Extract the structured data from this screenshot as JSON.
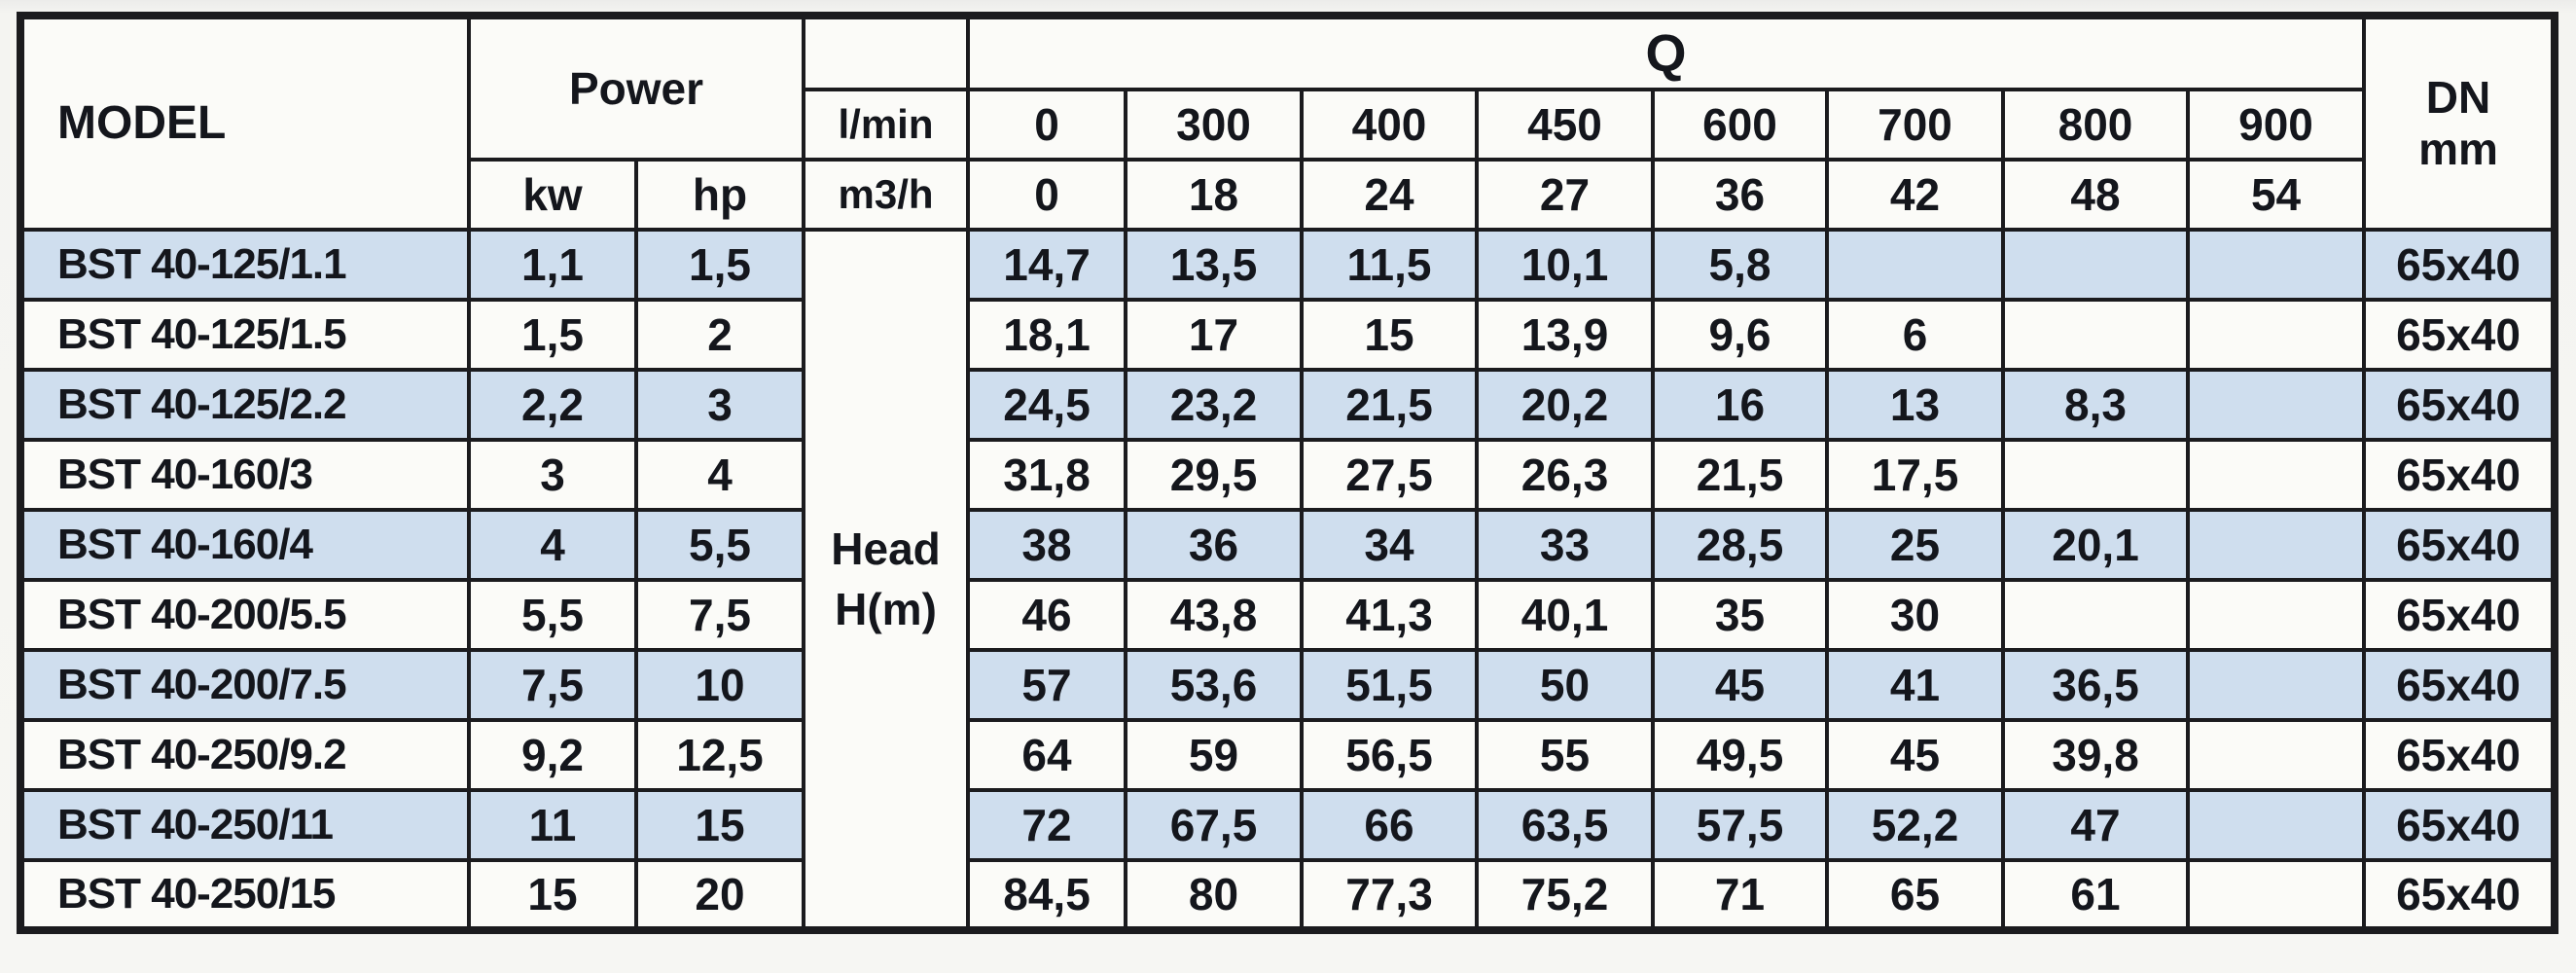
{
  "table": {
    "header": {
      "model": "MODEL",
      "power": "Power",
      "power_units": [
        "kw",
        "hp"
      ],
      "q": "Q",
      "flow_unit_lmin": "l/min",
      "flow_unit_m3h": "m3/h",
      "q_lmin": [
        "0",
        "300",
        "400",
        "450",
        "600",
        "700",
        "800",
        "900"
      ],
      "q_m3h": [
        "0",
        "18",
        "24",
        "27",
        "36",
        "42",
        "48",
        "54"
      ],
      "dn": "DN",
      "dn_unit": "mm",
      "head_line1": "Head",
      "head_line2": "H(m)"
    },
    "rows": [
      {
        "model": "BST 40-125/1.1",
        "kw": "1,1",
        "hp": "1,5",
        "q": [
          "14,7",
          "13,5",
          "11,5",
          "10,1",
          "5,8",
          "",
          "",
          ""
        ],
        "dn": "65x40"
      },
      {
        "model": "BST 40-125/1.5",
        "kw": "1,5",
        "hp": "2",
        "q": [
          "18,1",
          "17",
          "15",
          "13,9",
          "9,6",
          "6",
          "",
          ""
        ],
        "dn": "65x40"
      },
      {
        "model": "BST 40-125/2.2",
        "kw": "2,2",
        "hp": "3",
        "q": [
          "24,5",
          "23,2",
          "21,5",
          "20,2",
          "16",
          "13",
          "8,3",
          ""
        ],
        "dn": "65x40"
      },
      {
        "model": "BST 40-160/3",
        "kw": "3",
        "hp": "4",
        "q": [
          "31,8",
          "29,5",
          "27,5",
          "26,3",
          "21,5",
          "17,5",
          "",
          ""
        ],
        "dn": "65x40"
      },
      {
        "model": "BST 40-160/4",
        "kw": "4",
        "hp": "5,5",
        "q": [
          "38",
          "36",
          "34",
          "33",
          "28,5",
          "25",
          "20,1",
          ""
        ],
        "dn": "65x40"
      },
      {
        "model": "BST 40-200/5.5",
        "kw": "5,5",
        "hp": "7,5",
        "q": [
          "46",
          "43,8",
          "41,3",
          "40,1",
          "35",
          "30",
          "",
          ""
        ],
        "dn": "65x40"
      },
      {
        "model": "BST 40-200/7.5",
        "kw": "7,5",
        "hp": "10",
        "q": [
          "57",
          "53,6",
          "51,5",
          "50",
          "45",
          "41",
          "36,5",
          ""
        ],
        "dn": "65x40"
      },
      {
        "model": "BST 40-250/9.2",
        "kw": "9,2",
        "hp": "12,5",
        "q": [
          "64",
          "59",
          "56,5",
          "55",
          "49,5",
          "45",
          "39,8",
          ""
        ],
        "dn": "65x40"
      },
      {
        "model": "BST 40-250/11",
        "kw": "11",
        "hp": "15",
        "q": [
          "72",
          "67,5",
          "66",
          "63,5",
          "57,5",
          "52,2",
          "47",
          ""
        ],
        "dn": "65x40"
      },
      {
        "model": "BST 40-250/15",
        "kw": "15",
        "hp": "20",
        "q": [
          "84,5",
          "80",
          "77,3",
          "75,2",
          "71",
          "65",
          "61",
          ""
        ],
        "dn": "65x40"
      }
    ]
  },
  "colors": {
    "stripe_blue": "#cfdeee",
    "row_white": "#fbfbf8",
    "border_black": "#1b1b1e",
    "text": "#14161c"
  }
}
